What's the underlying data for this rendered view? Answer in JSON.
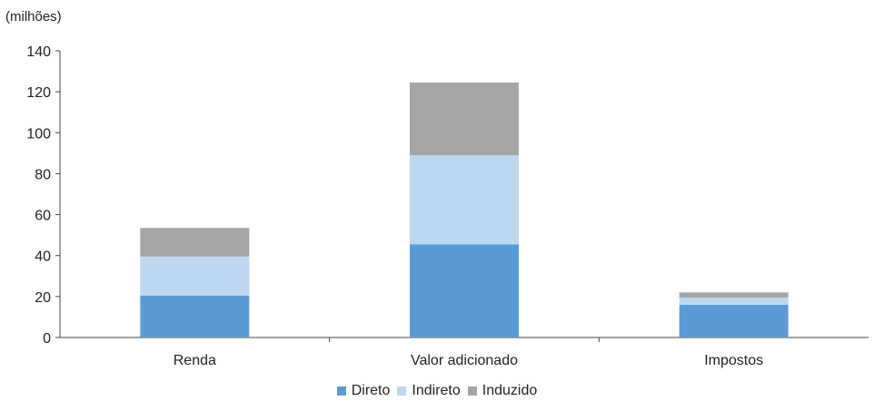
{
  "chart_data": {
    "type": "bar",
    "stacked": true,
    "unit_label": "(milhões)",
    "categories": [
      "Renda",
      "Valor adicionado",
      "Impostos"
    ],
    "series": [
      {
        "name": "Direto",
        "color": "#5b9bd5",
        "values": [
          20.5,
          45.5,
          16
        ]
      },
      {
        "name": "Indireto",
        "color": "#bdd7ee",
        "values": [
          19,
          43.5,
          3.5
        ]
      },
      {
        "name": "Induzido",
        "color": "#a5a5a5",
        "values": [
          14,
          35.5,
          2.5
        ]
      }
    ],
    "ylim": [
      0,
      140
    ],
    "yticks": [
      0,
      20,
      40,
      60,
      80,
      100,
      120,
      140
    ],
    "grid": false,
    "legend_position": "bottom"
  }
}
